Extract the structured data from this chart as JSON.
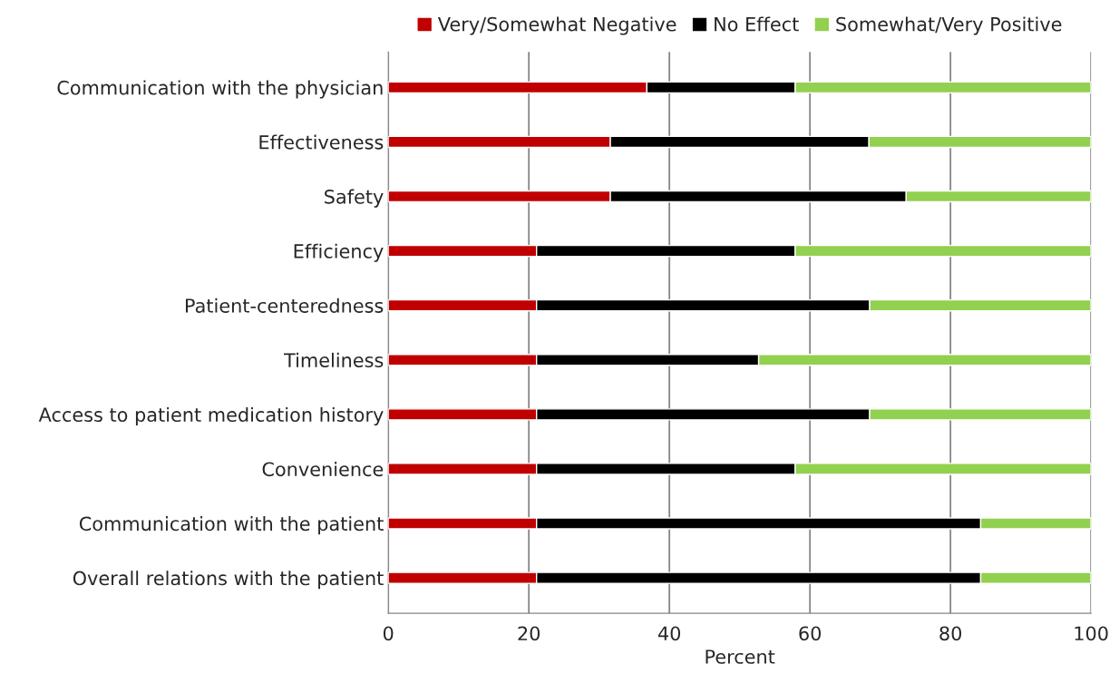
{
  "chart_data": {
    "type": "bar",
    "orientation": "horizontal",
    "stacked": true,
    "categories": [
      "Communication with the physician",
      "Effectiveness",
      "Safety",
      "Efficiency",
      "Patient-centeredness",
      "Timeliness",
      "Access to patient medication history",
      "Convenience",
      "Communication with the patient",
      "Overall relations with the patient"
    ],
    "series": [
      {
        "name": "Very/Somewhat Negative",
        "color": "#c00000",
        "values": [
          36.8,
          31.6,
          31.6,
          21.1,
          21.1,
          21.1,
          21.1,
          21.1,
          21.1,
          21.1
        ]
      },
      {
        "name": "No Effect",
        "color": "#000000",
        "values": [
          21.1,
          36.8,
          42.1,
          36.8,
          47.4,
          31.6,
          47.4,
          36.8,
          63.2,
          63.2
        ]
      },
      {
        "name": "Somewhat/Very Positive",
        "color": "#92d050",
        "values": [
          42.1,
          31.6,
          26.3,
          42.1,
          31.5,
          47.3,
          31.5,
          42.1,
          15.7,
          15.7
        ]
      }
    ],
    "xlabel": "Percent",
    "xlim": [
      0,
      100
    ],
    "xticks": [
      0,
      20,
      40,
      60,
      80,
      100
    ],
    "grid": "x",
    "legend": "top"
  }
}
